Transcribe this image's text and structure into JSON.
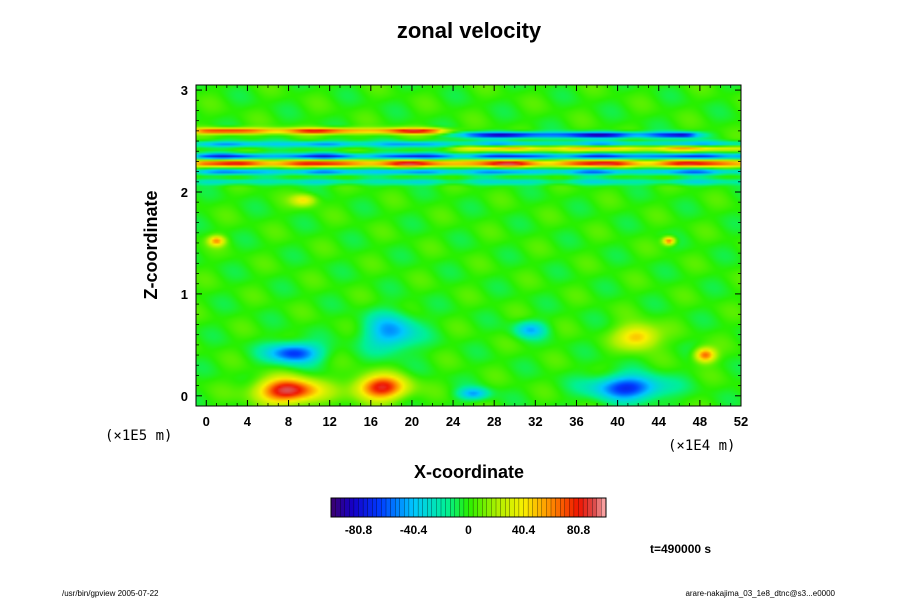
{
  "chart_data": {
    "type": "heatmap",
    "title": "zonal velocity",
    "xlabel": "X-coordinate",
    "ylabel": "Z-coordinate",
    "x_scale_note": "(×1E4 m)",
    "y_scale_note": "(×1E5 m)",
    "xlim": [
      -1,
      52
    ],
    "ylim": [
      -0.1,
      3.05
    ],
    "x_ticks": [
      0,
      4,
      8,
      12,
      16,
      20,
      24,
      28,
      32,
      36,
      40,
      44,
      48,
      52
    ],
    "y_ticks": [
      0,
      1,
      2,
      3
    ],
    "value_range": [
      -101,
      101
    ],
    "colorbar": {
      "ticks": [
        -80.8,
        -40.4,
        0,
        40.4,
        80.8
      ],
      "tick_labels": [
        "-80.8",
        "-40.4",
        "0",
        "40.4",
        "80.8"
      ]
    },
    "background_value": 0,
    "features": [
      {
        "kind": "blob",
        "x": 8,
        "z": 0.05,
        "value": 95,
        "sx": 3,
        "sz": 0.12
      },
      {
        "kind": "blob",
        "x": 17,
        "z": 0.08,
        "value": 85,
        "sx": 2.5,
        "sz": 0.12
      },
      {
        "kind": "blob",
        "x": 26,
        "z": 0.02,
        "value": -45,
        "sx": 1.5,
        "sz": 0.06
      },
      {
        "kind": "blob",
        "x": 41,
        "z": 0.08,
        "value": -70,
        "sx": 3.5,
        "sz": 0.12
      },
      {
        "kind": "blob",
        "x": 8.5,
        "z": 0.42,
        "value": -70,
        "sx": 2.5,
        "sz": 0.1
      },
      {
        "kind": "blob",
        "x": 18,
        "z": 0.62,
        "value": -50,
        "sx": 2.5,
        "sz": 0.18
      },
      {
        "kind": "blob",
        "x": 31.5,
        "z": 0.65,
        "value": -40,
        "sx": 1.5,
        "sz": 0.08
      },
      {
        "kind": "blob",
        "x": 42,
        "z": 0.58,
        "value": 55,
        "sx": 2.0,
        "sz": 0.12
      },
      {
        "kind": "blob",
        "x": 48.5,
        "z": 0.4,
        "value": 70,
        "sx": 1.0,
        "sz": 0.07
      },
      {
        "kind": "blob",
        "x": 9.5,
        "z": 1.92,
        "value": 42,
        "sx": 1.2,
        "sz": 0.06
      },
      {
        "kind": "blob",
        "x": 1,
        "z": 1.52,
        "value": 55,
        "sx": 0.8,
        "sz": 0.05
      },
      {
        "kind": "blob",
        "x": 45,
        "z": 1.52,
        "value": 70,
        "sx": 0.6,
        "sz": 0.04
      },
      {
        "kind": "band",
        "z": 2.6,
        "value": 85,
        "width": 0.03,
        "x_from": 0,
        "x_to": 22
      },
      {
        "kind": "band",
        "z": 2.56,
        "value": -90,
        "width": 0.03,
        "x_from": 26,
        "x_to": 46
      },
      {
        "kind": "band",
        "z": 2.47,
        "value": -50,
        "width": 0.03,
        "x_from": 0,
        "x_to": 52
      },
      {
        "kind": "band",
        "z": 2.43,
        "value": 60,
        "width": 0.03,
        "x_from": 26,
        "x_to": 52
      },
      {
        "kind": "band",
        "z": 2.35,
        "value": -75,
        "width": 0.03,
        "x_from": 0,
        "x_to": 52
      },
      {
        "kind": "band",
        "z": 2.28,
        "value": 90,
        "width": 0.035,
        "x_from": 0,
        "x_to": 52
      },
      {
        "kind": "band",
        "z": 2.2,
        "value": -55,
        "width": 0.03,
        "x_from": 0,
        "x_to": 52
      },
      {
        "kind": "band",
        "z": 2.1,
        "value": -30,
        "width": 0.03,
        "x_from": 0,
        "x_to": 52
      }
    ]
  },
  "time_label": "t=490000 s",
  "footer_left": "/usr/bin/gpview 2005-07-22",
  "footer_right": "arare-nakajima_03_1e8_dtnc@s3...e0000",
  "colors": {
    "background": "#ffffff",
    "frame": "#000000"
  }
}
